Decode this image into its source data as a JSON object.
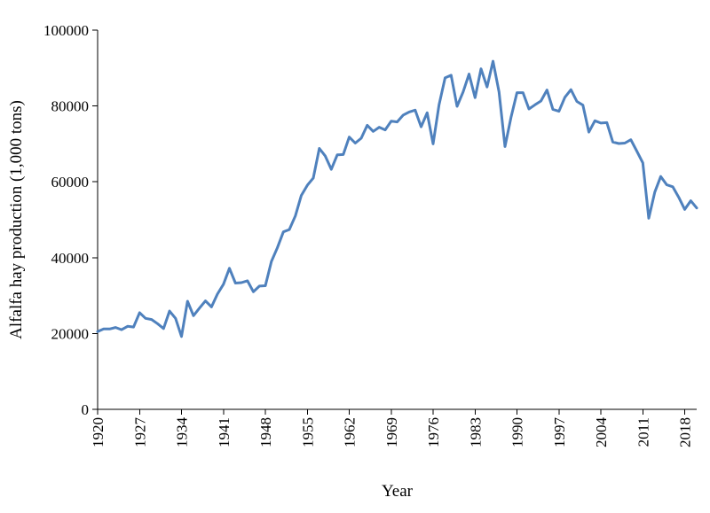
{
  "chart_data": {
    "type": "line",
    "title": "",
    "xlabel": "Year",
    "ylabel": "Alfalfa hay production (1,000 tons)",
    "xlim": [
      1920,
      2020
    ],
    "ylim": [
      0,
      100000
    ],
    "x_ticks": [
      1920,
      1927,
      1934,
      1941,
      1948,
      1955,
      1962,
      1969,
      1976,
      1983,
      1990,
      1997,
      2004,
      2011,
      2018
    ],
    "y_ticks": [
      0,
      20000,
      40000,
      60000,
      80000,
      100000
    ],
    "y_tick_labels": [
      "0",
      "20000",
      "40000",
      "60000",
      "80000",
      "100000"
    ],
    "grid": false,
    "legend": "none",
    "line_color": "#4f81bd",
    "series": [
      {
        "x": [
          1920,
          1921,
          1922,
          1923,
          1924,
          1925,
          1926,
          1927,
          1928,
          1929,
          1930,
          1931,
          1932,
          1933,
          1934,
          1935,
          1936,
          1937,
          1938,
          1939,
          1940,
          1941,
          1942,
          1943,
          1944,
          1945,
          1946,
          1947,
          1948,
          1949,
          1950,
          1951,
          1952,
          1953,
          1954,
          1955,
          1956,
          1957,
          1958,
          1959,
          1960,
          1961,
          1962,
          1963,
          1964,
          1965,
          1966,
          1967,
          1968,
          1969,
          1970,
          1971,
          1972,
          1973,
          1974,
          1975,
          1976,
          1977,
          1978,
          1979,
          1980,
          1981,
          1982,
          1983,
          1984,
          1985,
          1986,
          1987,
          1988,
          1989,
          1990,
          1991,
          1992,
          1993,
          1994,
          1995,
          1996,
          1997,
          1998,
          1999,
          2000,
          2001,
          2002,
          2003,
          2004,
          2005,
          2006,
          2007,
          2008,
          2009,
          2010,
          2011,
          2012,
          2013,
          2014,
          2015,
          2016,
          2017,
          2018,
          2019,
          2020
        ],
        "values": [
          20500,
          21200,
          21200,
          21600,
          21000,
          21900,
          21700,
          25500,
          24000,
          23700,
          22600,
          21300,
          25900,
          24000,
          19200,
          28500,
          24700,
          26700,
          28600,
          27000,
          30400,
          33000,
          37200,
          33300,
          33400,
          33900,
          31000,
          32500,
          32600,
          39000,
          42600,
          46800,
          47400,
          51000,
          56400,
          59100,
          61000,
          68800,
          66800,
          63300,
          67100,
          67200,
          71800,
          70200,
          71500,
          74900,
          73300,
          74400,
          73700,
          76000,
          75800,
          77600,
          78400,
          78900,
          74500,
          78200,
          70000,
          80300,
          87400,
          88100,
          79900,
          83700,
          88400,
          82200,
          89800,
          85000,
          91800,
          83700,
          69300,
          77000,
          83500,
          83500,
          79200,
          80300,
          81300,
          84200,
          79100,
          78600,
          82300,
          84300,
          81200,
          80200,
          73100,
          76100,
          75500,
          75600,
          70500,
          70100,
          70200,
          71100,
          68100,
          65000,
          50400,
          57300,
          61400,
          59200,
          58700,
          55900,
          52700,
          55000,
          53100
        ]
      }
    ]
  }
}
